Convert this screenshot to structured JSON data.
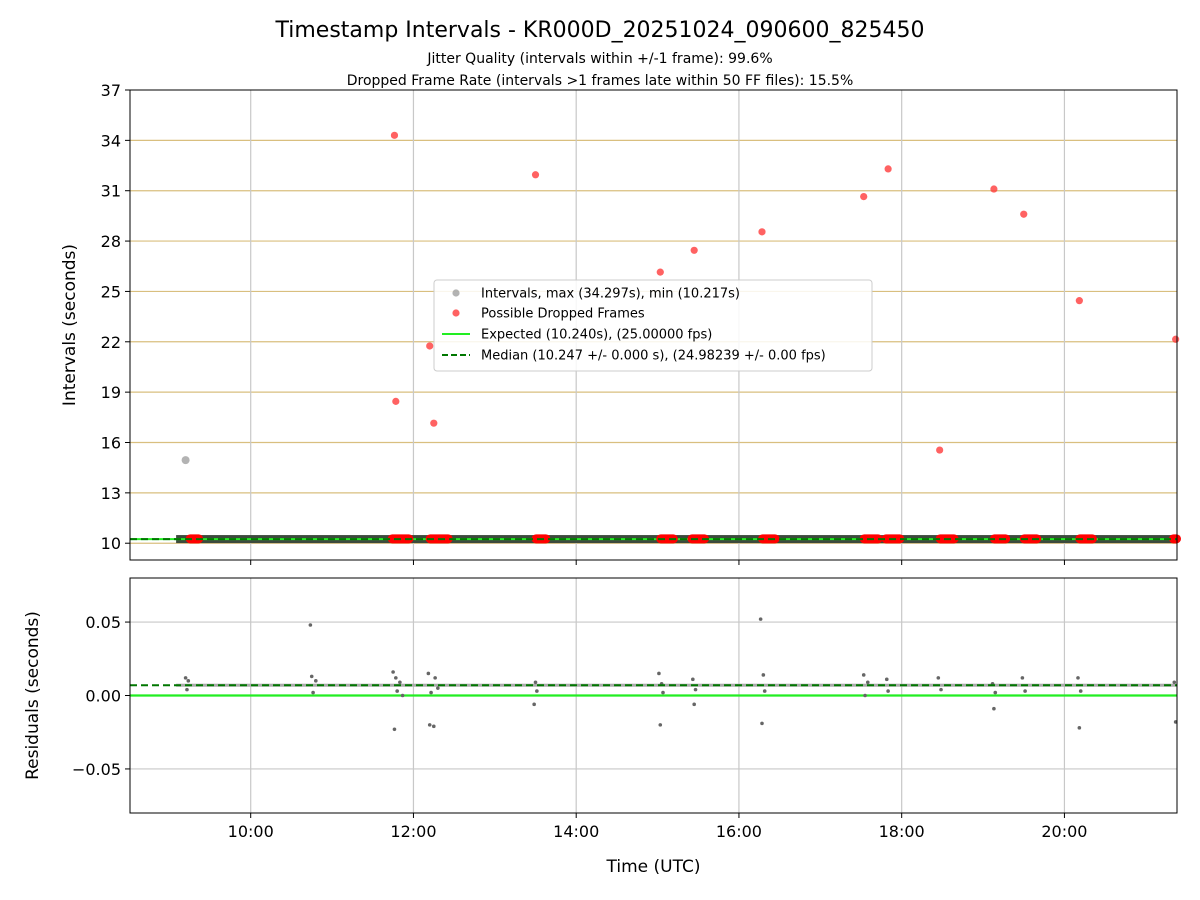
{
  "title": "Timestamp Intervals - KR000D_20251024_090600_825450",
  "subtitle_lines": [
    "Jitter Quality (intervals within +/-1 frame): 99.6%",
    "Dropped Frame Rate (intervals >1 frames late within 50 FF files): 15.5%"
  ],
  "colors": {
    "intervals": "#999999",
    "dropped": "#ff3b3b",
    "expected": "#22ee22",
    "median": "#007700",
    "hgrid_top": "#d9bf7f",
    "grid": "#c8c8c8",
    "residuals": "#666666"
  },
  "chart_data": [
    {
      "type": "scatter",
      "panel": "top",
      "ylabel": "Intervals (seconds)",
      "xlabel": "",
      "x_range": [
        "08:31",
        "21:23"
      ],
      "xticks": [
        "10:00",
        "12:00",
        "14:00",
        "16:00",
        "18:00",
        "20:00"
      ],
      "ylim": [
        9.0,
        37.0
      ],
      "yticks": [
        10,
        13,
        16,
        19,
        22,
        25,
        28,
        31,
        34,
        37
      ],
      "grid": "horizontal gold + vertical grey",
      "legend_position": "center",
      "legend": [
        "Intervals, max (34.297s), min (10.217s)",
        "Possible Dropped Frames",
        "Expected (10.240s), (25.00000 fps)",
        "Median (10.247 +/- 0.000 s), (24.98239 +/- 0.00 fps)"
      ],
      "expected_value": 10.24,
      "median_value": 10.247,
      "interval_band": {
        "x_start": "09:05",
        "x_end": "21:23",
        "y": 10.247
      },
      "interval_outliers": [
        {
          "x": "09:12",
          "y": 14.95
        }
      ],
      "dropped_frames": [
        {
          "x": "11:46",
          "y": 34.3
        },
        {
          "x": "11:47",
          "y": 18.45
        },
        {
          "x": "12:12",
          "y": 21.75
        },
        {
          "x": "12:15",
          "y": 17.15
        },
        {
          "x": "13:30",
          "y": 31.95
        },
        {
          "x": "15:02",
          "y": 26.15
        },
        {
          "x": "15:27",
          "y": 27.45
        },
        {
          "x": "16:17",
          "y": 28.55
        },
        {
          "x": "17:32",
          "y": 30.65
        },
        {
          "x": "17:50",
          "y": 32.3
        },
        {
          "x": "18:28",
          "y": 15.55
        },
        {
          "x": "19:08",
          "y": 31.1
        },
        {
          "x": "19:30",
          "y": 29.6
        },
        {
          "x": "20:11",
          "y": 24.45
        },
        {
          "x": "21:22",
          "y": 22.15
        }
      ],
      "dropped_clusters": [
        {
          "x_start": "09:15",
          "x_end": "09:22",
          "y": 10.26
        },
        {
          "x_start": "11:44",
          "x_end": "11:57",
          "y": 10.26
        },
        {
          "x_start": "12:12",
          "x_end": "12:26",
          "y": 10.26
        },
        {
          "x_start": "13:30",
          "x_end": "13:38",
          "y": 10.26
        },
        {
          "x_start": "15:02",
          "x_end": "15:12",
          "y": 10.26
        },
        {
          "x_start": "15:25",
          "x_end": "15:35",
          "y": 10.26
        },
        {
          "x_start": "16:17",
          "x_end": "16:27",
          "y": 10.26
        },
        {
          "x_start": "17:32",
          "x_end": "17:43",
          "y": 10.26
        },
        {
          "x_start": "17:48",
          "x_end": "17:59",
          "y": 10.26
        },
        {
          "x_start": "18:28",
          "x_end": "18:39",
          "y": 10.26
        },
        {
          "x_start": "19:08",
          "x_end": "19:17",
          "y": 10.26
        },
        {
          "x_start": "19:30",
          "x_end": "19:40",
          "y": 10.26
        },
        {
          "x_start": "20:11",
          "x_end": "20:21",
          "y": 10.26
        },
        {
          "x_start": "21:20",
          "x_end": "21:23",
          "y": 10.26
        }
      ]
    },
    {
      "type": "scatter",
      "panel": "bottom",
      "ylabel": "Residuals (seconds)",
      "xlabel": "Time (UTC)",
      "x_range": [
        "08:31",
        "21:23"
      ],
      "xticks": [
        "10:00",
        "12:00",
        "14:00",
        "16:00",
        "18:00",
        "20:00"
      ],
      "ylim": [
        -0.08,
        0.08
      ],
      "yticks": [
        0.05,
        0.0,
        -0.05
      ],
      "ytick_labels": [
        "0.05",
        "0.00",
        "−0.05"
      ],
      "grid": "both grey",
      "expected_residual": 0.0,
      "median_residual": 0.007,
      "residual_baseline": {
        "x_start": "09:05",
        "x_end": "21:23",
        "y": 0.007
      },
      "residual_points": [
        {
          "x": "09:12",
          "y": 0.012
        },
        {
          "x": "09:13",
          "y": 0.004
        },
        {
          "x": "09:14",
          "y": 0.01
        },
        {
          "x": "10:44",
          "y": 0.048
        },
        {
          "x": "10:45",
          "y": 0.013
        },
        {
          "x": "10:46",
          "y": 0.002
        },
        {
          "x": "10:48",
          "y": 0.01
        },
        {
          "x": "11:45",
          "y": 0.016
        },
        {
          "x": "11:46",
          "y": -0.023
        },
        {
          "x": "11:47",
          "y": 0.012
        },
        {
          "x": "11:48",
          "y": 0.003
        },
        {
          "x": "11:50",
          "y": 0.009
        },
        {
          "x": "11:52",
          "y": 0.0
        },
        {
          "x": "12:11",
          "y": 0.015
        },
        {
          "x": "12:12",
          "y": -0.02
        },
        {
          "x": "12:13",
          "y": 0.002
        },
        {
          "x": "12:15",
          "y": -0.021
        },
        {
          "x": "12:16",
          "y": 0.012
        },
        {
          "x": "12:18",
          "y": 0.005
        },
        {
          "x": "13:29",
          "y": -0.006
        },
        {
          "x": "13:30",
          "y": 0.009
        },
        {
          "x": "13:31",
          "y": 0.003
        },
        {
          "x": "15:01",
          "y": 0.015
        },
        {
          "x": "15:02",
          "y": -0.02
        },
        {
          "x": "15:03",
          "y": 0.008
        },
        {
          "x": "15:04",
          "y": 0.002
        },
        {
          "x": "15:26",
          "y": 0.011
        },
        {
          "x": "15:27",
          "y": -0.006
        },
        {
          "x": "15:28",
          "y": 0.004
        },
        {
          "x": "16:16",
          "y": 0.052
        },
        {
          "x": "16:17",
          "y": -0.019
        },
        {
          "x": "16:18",
          "y": 0.014
        },
        {
          "x": "16:19",
          "y": 0.003
        },
        {
          "x": "17:32",
          "y": 0.014
        },
        {
          "x": "17:33",
          "y": 0.0
        },
        {
          "x": "17:35",
          "y": 0.009
        },
        {
          "x": "17:49",
          "y": 0.011
        },
        {
          "x": "17:50",
          "y": 0.003
        },
        {
          "x": "18:27",
          "y": 0.012
        },
        {
          "x": "18:29",
          "y": 0.004
        },
        {
          "x": "19:07",
          "y": 0.008
        },
        {
          "x": "19:08",
          "y": -0.009
        },
        {
          "x": "19:09",
          "y": 0.002
        },
        {
          "x": "19:29",
          "y": 0.012
        },
        {
          "x": "19:31",
          "y": 0.003
        },
        {
          "x": "20:10",
          "y": 0.012
        },
        {
          "x": "20:11",
          "y": -0.022
        },
        {
          "x": "20:12",
          "y": 0.003
        },
        {
          "x": "21:21",
          "y": 0.009
        },
        {
          "x": "21:22",
          "y": -0.018
        }
      ]
    }
  ]
}
